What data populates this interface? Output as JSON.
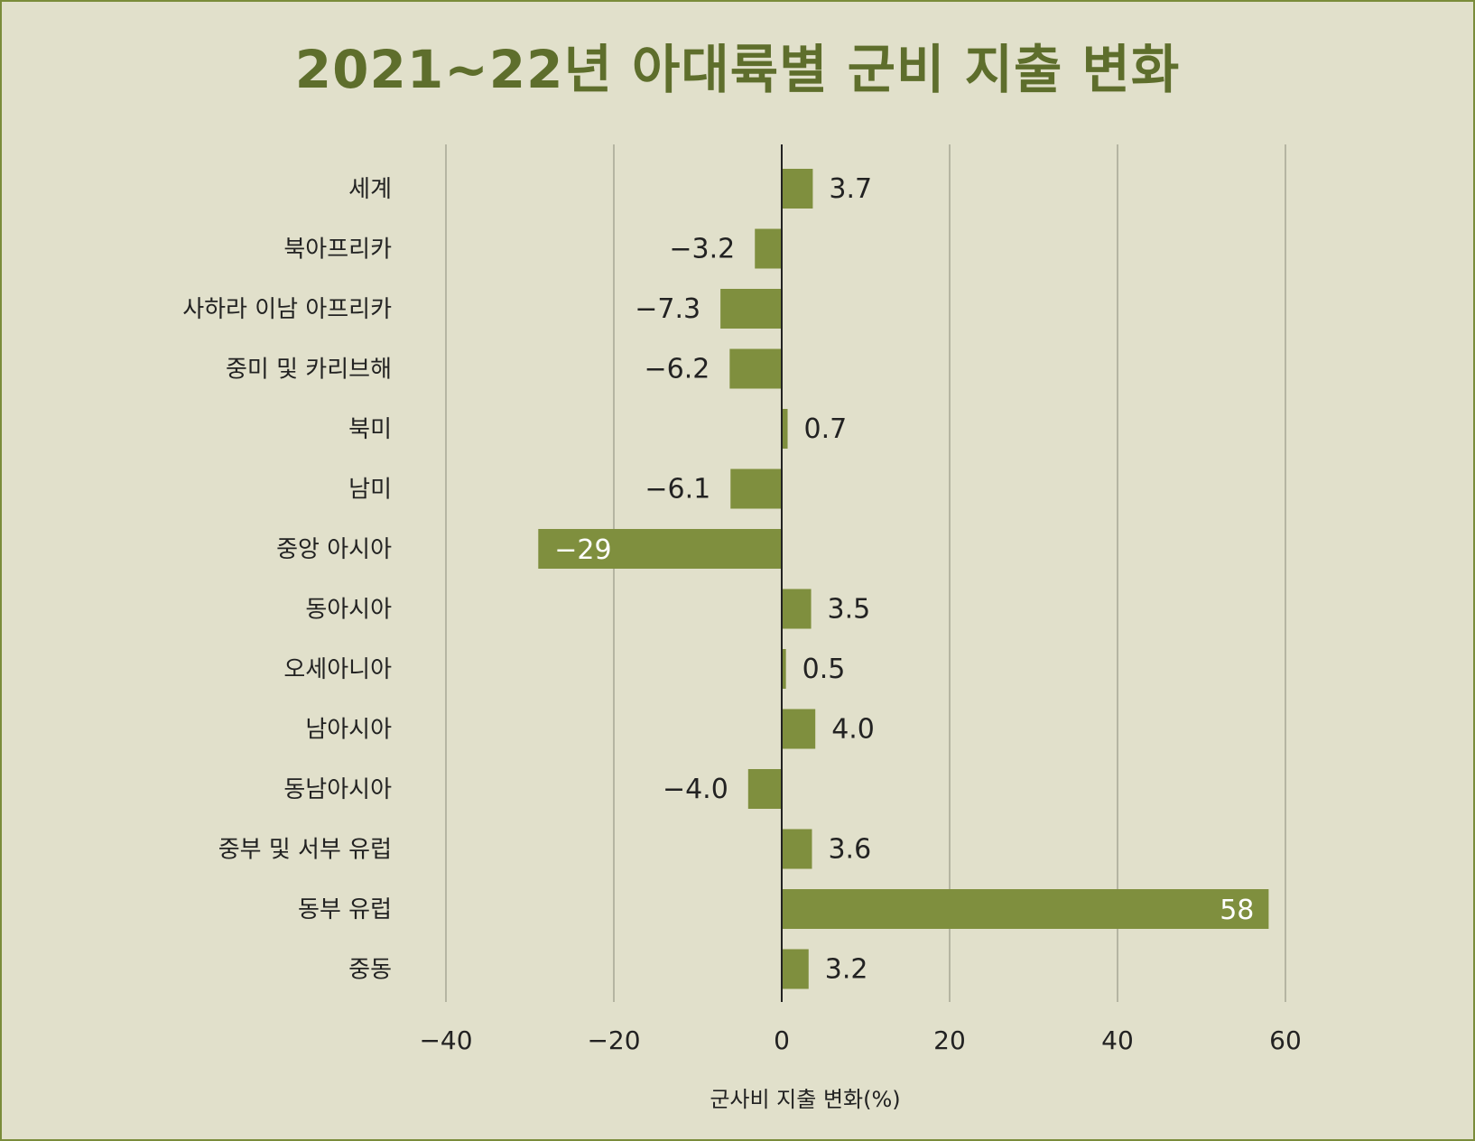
{
  "chart_data": {
    "type": "bar",
    "orientation": "horizontal",
    "title": "2021~22년 아대륙별 군비 지출 변화",
    "xlabel": "군사비 지출 변화(%)",
    "ylabel": "",
    "xlim": [
      -40,
      60
    ],
    "xticks": [
      -40,
      -20,
      0,
      20,
      40,
      60
    ],
    "xtick_labels": [
      "−40",
      "−20",
      "0",
      "20",
      "40",
      "60"
    ],
    "grid": "vertical",
    "categories": [
      "세계",
      "북아프리카",
      "사하라 이남 아프리카",
      "중미 및 카리브해",
      "북미",
      "남미",
      "중앙 아시아",
      "동아시아",
      "오세아니아",
      "남아시아",
      "동남아시아",
      "중부 및 서부 유럽",
      "동부 유럽",
      "중동"
    ],
    "values": [
      3.7,
      -3.2,
      -7.3,
      -6.2,
      0.7,
      -6.1,
      -29,
      3.5,
      0.5,
      4.0,
      -4.0,
      3.6,
      58,
      3.2
    ],
    "value_labels": [
      "3.7",
      "−3.2",
      "−7.3",
      "−6.2",
      "0.7",
      "−6.1",
      "−29",
      "3.5",
      "0.5",
      "4.0",
      "−4.0",
      "3.6",
      "58",
      "3.2"
    ],
    "colors": {
      "bar": "#7f8f3e",
      "title": "#5e6e2c",
      "background": "#e1e0cb",
      "grid": "#b5b5a2",
      "zero_axis": "#222222"
    }
  }
}
